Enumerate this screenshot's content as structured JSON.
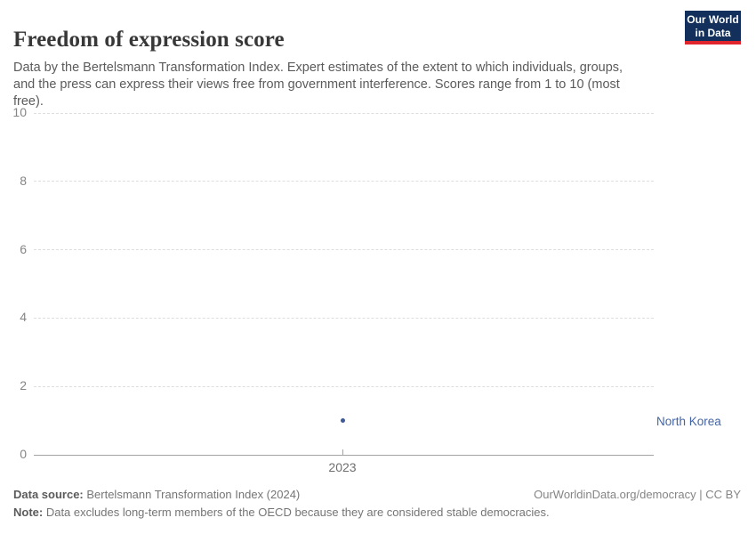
{
  "header": {
    "title": "Freedom of expression score",
    "subtitle": "Data by the Bertelsmann Transformation Index. Expert estimates of the extent to which individuals, groups, and the press can express their views free from government interference. Scores range from 1 to 10 (most free).",
    "logo": {
      "line1": "Our World",
      "line2": "in Data",
      "bg_color": "#12305b",
      "accent_color": "#e0262c"
    }
  },
  "chart_data": {
    "type": "scatter",
    "title": "Freedom of expression score",
    "x": [
      2023
    ],
    "series": [
      {
        "name": "North Korea",
        "values": [
          1
        ],
        "color": "#3d5a96"
      }
    ],
    "xlabel": "",
    "ylabel": "",
    "ylim": [
      0,
      10
    ],
    "yticks": [
      0,
      2,
      4,
      6,
      8,
      10
    ],
    "xtick_labels": [
      "2023"
    ],
    "grid": "horizontal-dashed",
    "legend_position": "right-inline-entity-label"
  },
  "annotations": {
    "entity_label": "North Korea",
    "entity_color": "#4465a5"
  },
  "axis": {
    "x_tick_label": "2023"
  },
  "footer": {
    "data_source_label": "Data source:",
    "data_source_value": " Bertelsmann Transformation Index (2024)",
    "link_text": "OurWorldinData.org/democracy | CC BY",
    "note_label": "Note:",
    "note_value": " Data excludes long-term members of the OECD because they are considered stable democracies."
  }
}
